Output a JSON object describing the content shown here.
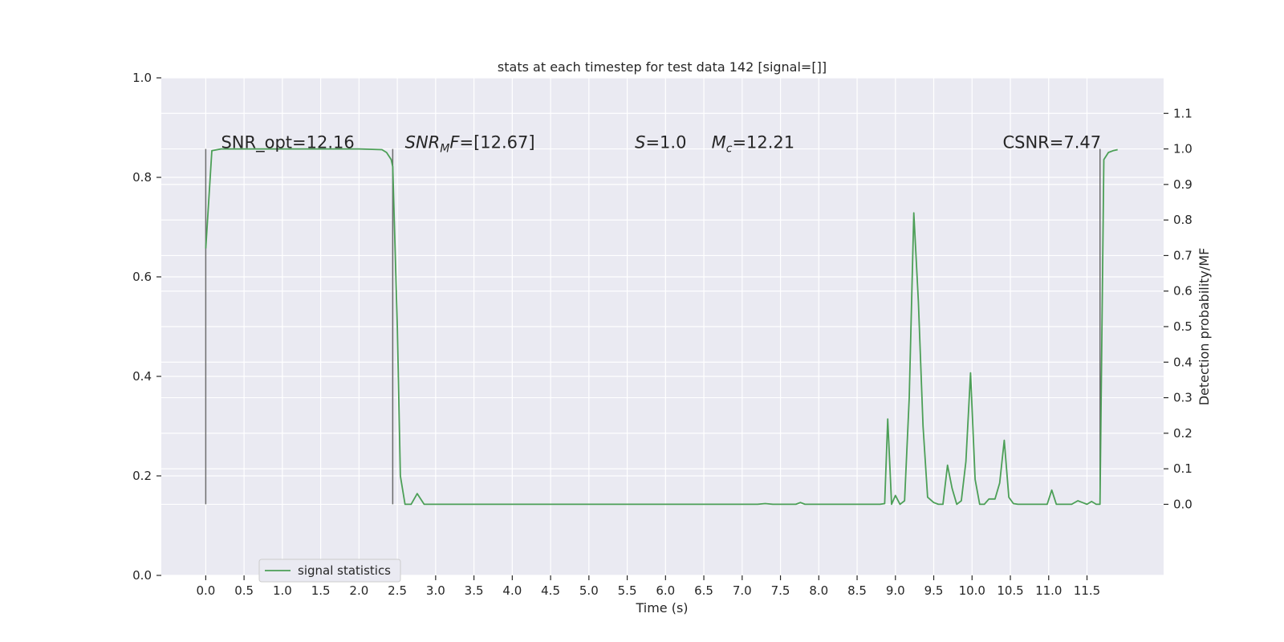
{
  "chart_data": {
    "type": "line",
    "title": "stats at each timestep for test data 142 [signal=[]]",
    "xlabel": "Time (s)",
    "ylabel": "",
    "y2label": "Detection probability/MF",
    "xlim": [
      -0.58,
      12.5
    ],
    "ylim": [
      0.0,
      1.0
    ],
    "y2lim": [
      -0.2,
      1.2
    ],
    "x_ticks": [
      "0.0",
      "0.5",
      "1.0",
      "1.5",
      "2.0",
      "2.5",
      "3.0",
      "3.5",
      "4.0",
      "4.5",
      "5.0",
      "5.5",
      "6.0",
      "6.5",
      "7.0",
      "7.5",
      "8.0",
      "8.5",
      "9.0",
      "9.5",
      "10.0",
      "10.5",
      "11.0",
      "11.5"
    ],
    "y_ticks": [
      "0.0",
      "0.2",
      "0.4",
      "0.6",
      "0.8",
      "1.0"
    ],
    "y2_ticks": [
      "0.0",
      "0.1",
      "0.2",
      "0.3",
      "0.4",
      "0.5",
      "0.6",
      "0.7",
      "0.8",
      "0.9",
      "1.0",
      "1.1"
    ],
    "grid": true,
    "legend_position": "lower-left",
    "vlines": [
      {
        "x": 0.0,
        "y_from": 0.0,
        "y_to": 1.0
      },
      {
        "x": 2.44,
        "y_from": 0.0,
        "y_to": 1.0
      },
      {
        "x": 11.67,
        "y_from": 0.0,
        "y_to": 1.0
      }
    ],
    "annotations": [
      {
        "text": "SNR_opt=12.16",
        "x": 0.2,
        "y": 1.0
      },
      {
        "text": "SNR_MF=[12.67]",
        "main": "SNR",
        "sub": "M",
        "rest": "F=[12.67]",
        "italic_main": true,
        "x": 2.6,
        "y": 1.0
      },
      {
        "text": "S=1.0",
        "main": "S",
        "rest": "=1.0",
        "italic_main": true,
        "x": 5.6,
        "y": 1.0
      },
      {
        "text": "M_c=12.21",
        "main": "M",
        "sub": "c",
        "rest": "=12.21",
        "italic_main": true,
        "x": 6.6,
        "y": 1.0
      },
      {
        "text": "CSNR=7.47",
        "x": 10.4,
        "y": 1.0
      }
    ],
    "series": [
      {
        "name": "signal statistics",
        "axis": "right",
        "color": "#4c9f57",
        "points": [
          [
            0.0,
            0.72
          ],
          [
            0.08,
            0.995
          ],
          [
            0.2,
            1.0
          ],
          [
            0.5,
            1.0
          ],
          [
            1.0,
            1.0
          ],
          [
            1.5,
            1.0
          ],
          [
            2.0,
            1.0
          ],
          [
            2.3,
            0.998
          ],
          [
            2.36,
            0.99
          ],
          [
            2.42,
            0.97
          ],
          [
            2.44,
            0.95
          ],
          [
            2.5,
            0.5
          ],
          [
            2.54,
            0.08
          ],
          [
            2.6,
            0.0
          ],
          [
            2.68,
            0.0
          ],
          [
            2.76,
            0.03
          ],
          [
            2.85,
            0.0
          ],
          [
            3.0,
            0.0
          ],
          [
            3.5,
            0.0
          ],
          [
            4.0,
            0.0
          ],
          [
            5.0,
            0.0
          ],
          [
            6.0,
            0.0
          ],
          [
            7.0,
            0.0
          ],
          [
            7.2,
            0.0
          ],
          [
            7.3,
            0.002
          ],
          [
            7.4,
            0.0
          ],
          [
            7.7,
            0.0
          ],
          [
            7.76,
            0.005
          ],
          [
            7.82,
            0.0
          ],
          [
            8.0,
            0.0
          ],
          [
            8.5,
            0.0
          ],
          [
            8.8,
            0.0
          ],
          [
            8.86,
            0.002
          ],
          [
            8.9,
            0.24
          ],
          [
            8.95,
            0.0
          ],
          [
            9.0,
            0.025
          ],
          [
            9.06,
            0.0
          ],
          [
            9.12,
            0.01
          ],
          [
            9.18,
            0.3
          ],
          [
            9.24,
            0.82
          ],
          [
            9.3,
            0.57
          ],
          [
            9.36,
            0.22
          ],
          [
            9.42,
            0.02
          ],
          [
            9.5,
            0.005
          ],
          [
            9.56,
            0.0
          ],
          [
            9.62,
            0.0
          ],
          [
            9.68,
            0.11
          ],
          [
            9.74,
            0.045
          ],
          [
            9.8,
            0.0
          ],
          [
            9.86,
            0.01
          ],
          [
            9.92,
            0.12
          ],
          [
            9.98,
            0.37
          ],
          [
            10.04,
            0.07
          ],
          [
            10.1,
            0.0
          ],
          [
            10.16,
            0.0
          ],
          [
            10.22,
            0.015
          ],
          [
            10.3,
            0.015
          ],
          [
            10.36,
            0.06
          ],
          [
            10.42,
            0.18
          ],
          [
            10.48,
            0.02
          ],
          [
            10.54,
            0.002
          ],
          [
            10.6,
            0.0
          ],
          [
            10.7,
            0.0
          ],
          [
            10.9,
            0.0
          ],
          [
            10.98,
            0.0
          ],
          [
            11.04,
            0.04
          ],
          [
            11.1,
            0.0
          ],
          [
            11.2,
            0.0
          ],
          [
            11.3,
            0.0
          ],
          [
            11.38,
            0.01
          ],
          [
            11.44,
            0.005
          ],
          [
            11.5,
            0.0
          ],
          [
            11.56,
            0.008
          ],
          [
            11.62,
            0.0
          ],
          [
            11.67,
            0.0
          ],
          [
            11.72,
            0.97
          ],
          [
            11.78,
            0.99
          ],
          [
            11.84,
            0.995
          ],
          [
            11.9,
            0.998
          ]
        ]
      }
    ]
  }
}
